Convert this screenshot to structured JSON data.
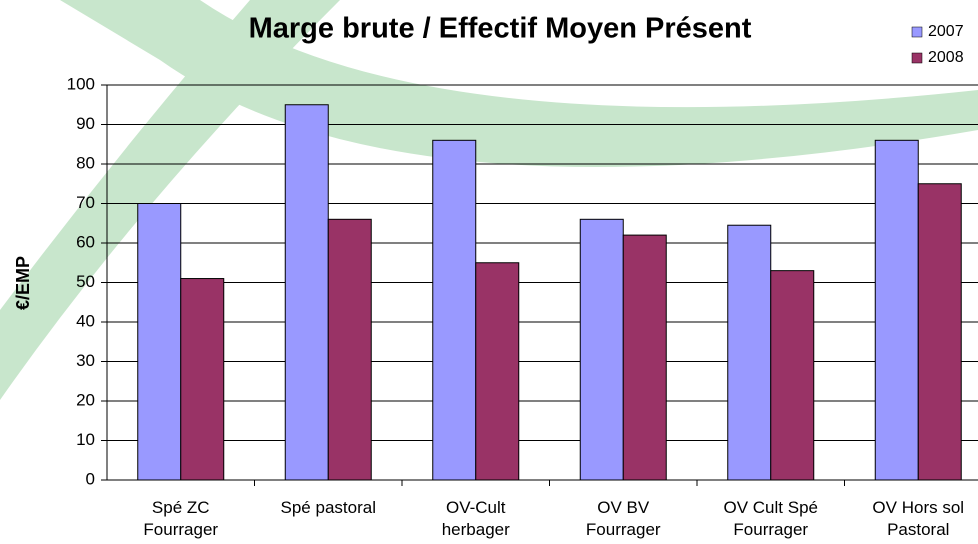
{
  "chart_data": {
    "type": "bar",
    "title": "Marge brute / Effectif Moyen Présent",
    "y_label": "€/EMP",
    "categories": [
      "Spé ZC\nFourrager",
      "Spé pastoral",
      "OV-Cult\nherbager",
      "OV BV\nFourrager",
      "OV Cult Spé\nFourrager",
      "OV Hors sol\nPastoral"
    ],
    "series": [
      {
        "name": "2007",
        "color": "#9999ff",
        "values": [
          70,
          95,
          86,
          66,
          64.5,
          86
        ]
      },
      {
        "name": "2008",
        "color": "#993366",
        "values": [
          51,
          66,
          55,
          62,
          53,
          75
        ]
      }
    ],
    "ylim": [
      0,
      100
    ],
    "yticks": [
      0,
      10,
      20,
      30,
      40,
      50,
      60,
      70,
      80,
      90,
      100
    ],
    "grid": true,
    "legend": "top-right"
  }
}
